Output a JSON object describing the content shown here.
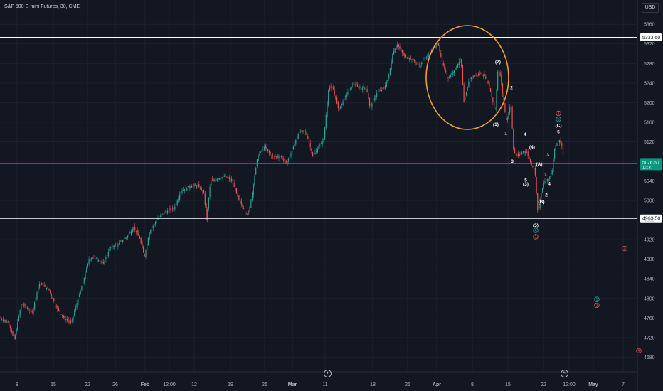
{
  "header": {
    "symbol_title": "S&P 500 E-mini Futures, 30, CME",
    "currency_label": "USD"
  },
  "icons": {
    "replay": "replay-icon",
    "flash": "flash-icon"
  },
  "colors": {
    "bg": "#131722",
    "grid": "#1c2030",
    "up": "#26a69a",
    "down": "#ef5350",
    "hline": "#ffffff",
    "circle": "#f59c2b",
    "last_price": "#089981",
    "label_white": "#ffffff",
    "label_green": "#26a69a",
    "label_red": "#ef5350"
  },
  "chart_data": {
    "type": "candlestick",
    "title": "S&P 500 E-mini Futures, 30, CME",
    "currency": "USD",
    "y_ticks": [
      5360,
      5320,
      5280,
      5240,
      5200,
      5160,
      5120,
      5080,
      5040,
      5000,
      4960,
      4920,
      4880,
      4840,
      4800,
      4760,
      4720,
      4680
    ],
    "ylim": [
      4670,
      5380
    ],
    "x_ticks": [
      "8",
      "15",
      "22",
      "26",
      "Feb",
      "12:00",
      "12",
      "19",
      "26",
      "Mar",
      "11",
      "18",
      "25",
      "Apr",
      "8",
      "15",
      "22",
      "12:00",
      "May",
      "7"
    ],
    "horizontal_levels": [
      {
        "price": 5333.5,
        "label": "5333.50"
      },
      {
        "price": 4963.5,
        "label": "4963.50"
      }
    ],
    "last_price": {
      "value": 5076.5,
      "label": "5076.50",
      "countdown": "10:37"
    },
    "price_path": [
      [
        0,
        4760
      ],
      [
        12,
        4750
      ],
      [
        20,
        4715
      ],
      [
        30,
        4790
      ],
      [
        45,
        4770
      ],
      [
        55,
        4830
      ],
      [
        68,
        4820
      ],
      [
        80,
        4780
      ],
      [
        90,
        4760
      ],
      [
        100,
        4750
      ],
      [
        108,
        4790
      ],
      [
        118,
        4840
      ],
      [
        125,
        4880
      ],
      [
        133,
        4885
      ],
      [
        145,
        4870
      ],
      [
        155,
        4905
      ],
      [
        165,
        4910
      ],
      [
        178,
        4925
      ],
      [
        188,
        4945
      ],
      [
        196,
        4925
      ],
      [
        203,
        4885
      ],
      [
        210,
        4935
      ],
      [
        220,
        4960
      ],
      [
        230,
        4975
      ],
      [
        245,
        4985
      ],
      [
        255,
        5020
      ],
      [
        268,
        5030
      ],
      [
        278,
        5030
      ],
      [
        287,
        5015
      ],
      [
        290,
        4960
      ],
      [
        296,
        5040
      ],
      [
        306,
        5045
      ],
      [
        316,
        5050
      ],
      [
        326,
        5040
      ],
      [
        336,
        5000
      ],
      [
        344,
        4980
      ],
      [
        349,
        4970
      ],
      [
        355,
        5020
      ],
      [
        362,
        5090
      ],
      [
        372,
        5110
      ],
      [
        382,
        5090
      ],
      [
        395,
        5090
      ],
      [
        402,
        5075
      ],
      [
        410,
        5100
      ],
      [
        420,
        5140
      ],
      [
        430,
        5140
      ],
      [
        440,
        5090
      ],
      [
        448,
        5110
      ],
      [
        455,
        5125
      ],
      [
        462,
        5230
      ],
      [
        468,
        5230
      ],
      [
        476,
        5185
      ],
      [
        486,
        5215
      ],
      [
        497,
        5240
      ],
      [
        505,
        5230
      ],
      [
        515,
        5230
      ],
      [
        520,
        5190
      ],
      [
        530,
        5220
      ],
      [
        540,
        5230
      ],
      [
        546,
        5250
      ],
      [
        552,
        5300
      ],
      [
        558,
        5320
      ],
      [
        568,
        5295
      ],
      [
        578,
        5290
      ],
      [
        590,
        5275
      ],
      [
        600,
        5295
      ],
      [
        610,
        5310
      ],
      [
        615,
        5325
      ],
      [
        622,
        5280
      ],
      [
        630,
        5250
      ],
      [
        640,
        5270
      ],
      [
        648,
        5290
      ],
      [
        652,
        5200
      ],
      [
        660,
        5250
      ],
      [
        668,
        5255
      ],
      [
        676,
        5260
      ],
      [
        684,
        5250
      ],
      [
        690,
        5220
      ],
      [
        696,
        5180
      ],
      [
        700,
        5270
      ],
      [
        704,
        5250
      ],
      [
        708,
        5200
      ],
      [
        712,
        5160
      ],
      [
        718,
        5200
      ],
      [
        722,
        5100
      ],
      [
        728,
        5090
      ],
      [
        735,
        5100
      ],
      [
        740,
        5100
      ],
      [
        745,
        5080
      ],
      [
        752,
        5060
      ],
      [
        756,
        4975
      ],
      [
        760,
        5010
      ],
      [
        765,
        5040
      ],
      [
        770,
        5040
      ],
      [
        776,
        5060
      ],
      [
        780,
        5110
      ],
      [
        786,
        5125
      ],
      [
        790,
        5110
      ],
      [
        793,
        5076.5
      ]
    ],
    "annotations": {
      "white": [
        {
          "text": "(2)",
          "price": 5284,
          "x": 700
        },
        {
          "text": "2",
          "price": 5231,
          "x": 719
        },
        {
          "text": "(1)",
          "price": 5156,
          "x": 697
        },
        {
          "text": "1",
          "price": 5138,
          "x": 711
        },
        {
          "text": "4",
          "price": 5136,
          "x": 738
        },
        {
          "text": "(4)",
          "price": 5110,
          "x": 748
        },
        {
          "text": "3",
          "price": 5094,
          "x": 770
        },
        {
          "text": "3",
          "price": 5081,
          "x": 720
        },
        {
          "text": "(A)",
          "price": 5075,
          "x": 758
        },
        {
          "text": "1",
          "price": 5054,
          "x": 767
        },
        {
          "text": "5",
          "price": 5042,
          "x": 739
        },
        {
          "text": "(3)",
          "price": 5034,
          "x": 739
        },
        {
          "text": "4",
          "price": 5035,
          "x": 772
        },
        {
          "text": "2",
          "price": 5012,
          "x": 768
        },
        {
          "text": "(B)",
          "price": 4998,
          "x": 761
        },
        {
          "text": "(5)",
          "price": 4950,
          "x": 753
        },
        {
          "text": "(C)",
          "price": 5154,
          "x": 785
        },
        {
          "text": "5",
          "price": 5141,
          "x": 785
        }
      ],
      "circled_green": [
        {
          "text": "A",
          "price": 4939,
          "x": 753
        },
        {
          "text": "B",
          "price": 5166,
          "x": 785
        },
        {
          "text": "1",
          "price": 4798,
          "x": 839
        }
      ],
      "circled_red": [
        {
          "text": "1",
          "price": 4926,
          "x": 753
        },
        {
          "text": "2",
          "price": 5178,
          "x": 785
        },
        {
          "text": "4",
          "price": 4902,
          "x": 878
        },
        {
          "text": "3",
          "price": 4786,
          "x": 839
        },
        {
          "text": "5",
          "price": 4693,
          "x": 898
        }
      ]
    },
    "highlight": "circle around April double-top consolidation"
  }
}
